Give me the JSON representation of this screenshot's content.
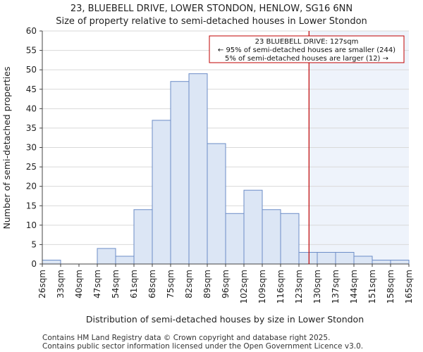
{
  "chart_data": {
    "type": "bar",
    "title": "23, BLUEBELL DRIVE, LOWER STONDON, HENLOW, SG16 6NN",
    "subtitle": "Size of property relative to semi-detached houses in Lower Stondon",
    "xlabel": "Distribution of semi-detached houses by size in Lower Stondon",
    "ylabel": "Number of semi-detached properties",
    "x_tick_labels": [
      "26sqm",
      "33sqm",
      "40sqm",
      "47sqm",
      "54sqm",
      "61sqm",
      "68sqm",
      "75sqm",
      "82sqm",
      "89sqm",
      "96sqm",
      "102sqm",
      "109sqm",
      "116sqm",
      "123sqm",
      "130sqm",
      "137sqm",
      "144sqm",
      "151sqm",
      "158sqm",
      "165sqm"
    ],
    "values": [
      1,
      0,
      0,
      4,
      2,
      14,
      37,
      47,
      49,
      31,
      13,
      19,
      14,
      13,
      3,
      3,
      3,
      2,
      1,
      1
    ],
    "ylim": [
      0,
      60
    ],
    "yticks": [
      0,
      5,
      10,
      15,
      20,
      25,
      30,
      35,
      40,
      45,
      50,
      55,
      60
    ],
    "marker_bin_position": 14.55,
    "marker_label": "127sqm",
    "bar_color": "#dce6f5",
    "bar_edge_color": "#6b8cc7",
    "marker_color": "#c00000",
    "highlight_color": "#eef3fb",
    "annotation": {
      "line1": "23 BLUEBELL DRIVE: 127sqm",
      "line2": "← 95% of semi-detached houses are smaller (244)",
      "line3": "5% of semi-detached houses are larger (12) →"
    }
  },
  "footer": {
    "line1": "Contains HM Land Registry data © Crown copyright and database right 2025.",
    "line2": "Contains public sector information licensed under the Open Government Licence v3.0."
  }
}
